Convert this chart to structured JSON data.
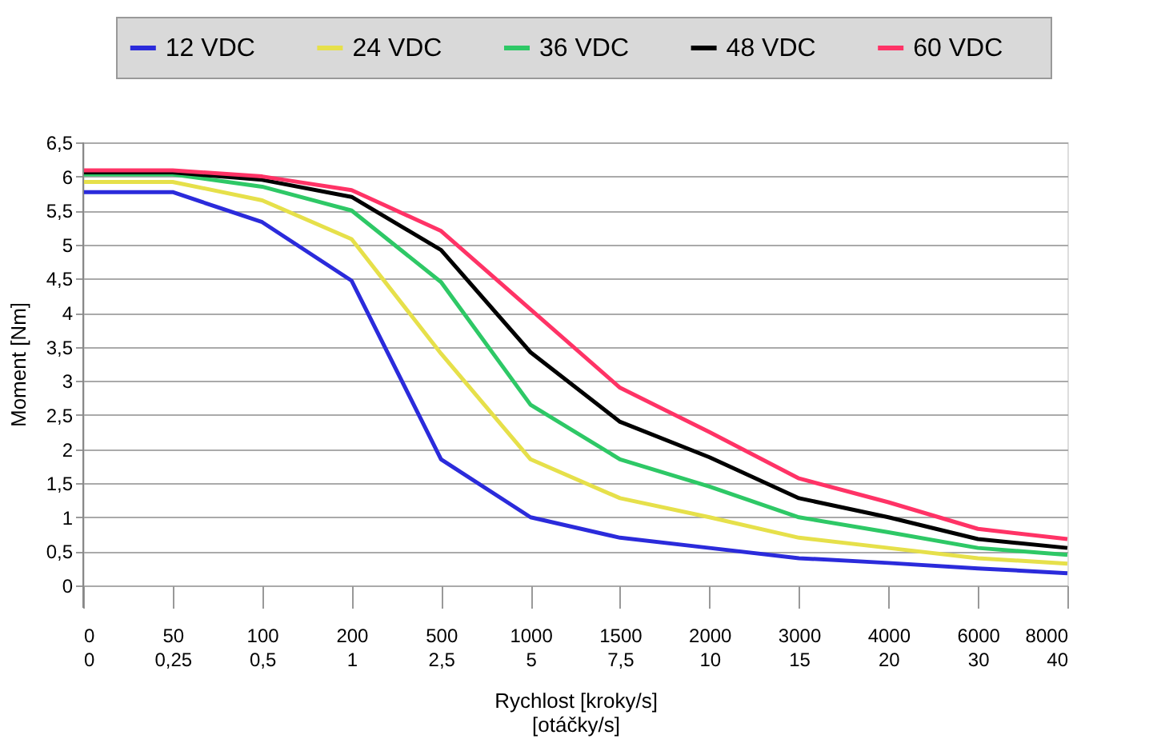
{
  "chart_data": {
    "type": "line",
    "xlabel": "Rychlost [kroky/s]\n[otáčky/s]",
    "ylabel": "Moment [Nm]",
    "categories": [
      "0\n0",
      "50\n0,25",
      "100\n0,5",
      "200\n1",
      "500\n2,5",
      "1000\n5",
      "1500\n7,5",
      "2000\n10",
      "3000\n15",
      "4000\n20",
      "6000\n30",
      "8000\n40"
    ],
    "series": [
      {
        "name": "12 VDC",
        "color": "#2b2bdb",
        "values": [
          5.77,
          5.77,
          5.33,
          4.47,
          1.85,
          1.0,
          0.7,
          0.55,
          0.4,
          0.33,
          0.25,
          0.18
        ]
      },
      {
        "name": "24 VDC",
        "color": "#e6e04a",
        "values": [
          5.92,
          5.92,
          5.65,
          5.08,
          3.4,
          1.85,
          1.28,
          1.0,
          0.7,
          0.55,
          0.4,
          0.32
        ]
      },
      {
        "name": "36 VDC",
        "color": "#2ec866",
        "values": [
          6.03,
          6.03,
          5.85,
          5.5,
          4.45,
          2.65,
          1.85,
          1.45,
          1.0,
          0.78,
          0.55,
          0.45
        ]
      },
      {
        "name": "48 VDC",
        "color": "#000000",
        "values": [
          6.06,
          6.06,
          5.95,
          5.7,
          4.92,
          3.42,
          2.4,
          1.88,
          1.28,
          1.0,
          0.68,
          0.55
        ]
      },
      {
        "name": "60 VDC",
        "color": "#ff3366",
        "values": [
          6.09,
          6.09,
          6.0,
          5.8,
          5.2,
          4.05,
          2.9,
          2.25,
          1.57,
          1.22,
          0.83,
          0.68
        ]
      }
    ],
    "ylim": [
      0,
      6.5
    ],
    "yticks": [
      0,
      {
        "value": 0.5,
        "label": "0,5"
      },
      1,
      {
        "value": 1.5,
        "label": "1,5"
      },
      2,
      {
        "value": 2.5,
        "label": "2,5"
      },
      3,
      {
        "value": 3.5,
        "label": "3,5"
      },
      4,
      {
        "value": 4.5,
        "label": "4,5"
      },
      5,
      {
        "value": 5.5,
        "label": "5,5"
      },
      6,
      {
        "value": 6.5,
        "label": "6,5"
      }
    ],
    "grid": "y",
    "legend": "top",
    "marker": "none",
    "line_style": "solid"
  }
}
